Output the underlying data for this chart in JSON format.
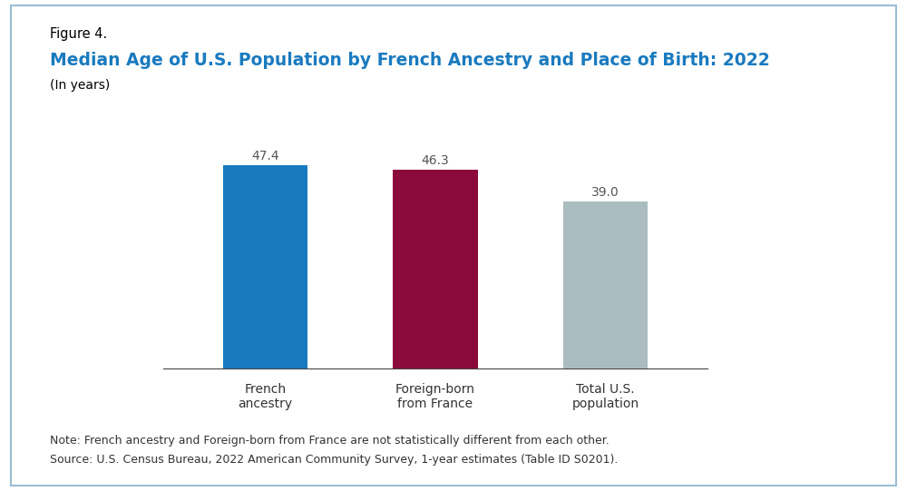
{
  "categories": [
    "French\nancestry",
    "Foreign-born\nfrom France",
    "Total U.S.\npopulation"
  ],
  "values": [
    47.4,
    46.3,
    39.0
  ],
  "bar_colors": [
    "#1a7abf",
    "#8b0a3c",
    "#aabcbf"
  ],
  "figure_label": "Figure 4.",
  "title": "Median Age of U.S. Population by French Ancestry and Place of Birth: 2022",
  "subtitle": "(In years)",
  "note_line1": "Note: French ancestry and Foreign-born from France are not statistically different from each other.",
  "note_line2": "Source: U.S. Census Bureau, 2022 American Community Survey, 1-year estimates (Table ID S0201).",
  "title_color": "#1a7abf",
  "figure_label_color": "#000000",
  "bar_label_color": "#555555",
  "ylim": [
    0,
    55
  ],
  "bar_width": 0.5,
  "background_color": "#ffffff",
  "border_color": "#9bbdd4",
  "title_fontsize": 13.5,
  "figure_label_fontsize": 10.5,
  "subtitle_fontsize": 10,
  "tick_label_fontsize": 10,
  "bar_label_fontsize": 10,
  "note_fontsize": 9
}
